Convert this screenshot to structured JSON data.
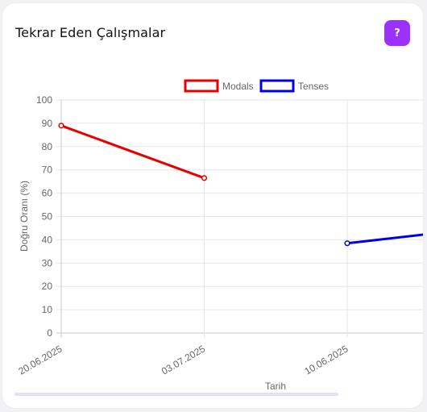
{
  "card": {
    "title": "Tekrar Eden Çalışmalar",
    "help_label": "?",
    "help_color": "#9b30ff"
  },
  "chart_data": {
    "type": "line",
    "categories": [
      "20.06.2025",
      "03.07.2025",
      "10.06.2025",
      ""
    ],
    "series": [
      {
        "name": "Modals",
        "color": "#e60000",
        "values": [
          89,
          66.5,
          null,
          null
        ]
      },
      {
        "name": "Tenses",
        "color": "#0000e6",
        "values": [
          null,
          null,
          38.5,
          45.5
        ]
      }
    ],
    "xlabel": "Tarih",
    "ylabel": "Doğru Oranı (%)",
    "ylim": [
      0,
      100
    ],
    "yticks": [
      0,
      10,
      20,
      30,
      40,
      50,
      60,
      70,
      80,
      90,
      100
    ],
    "grid": true,
    "legend_position": "top-center"
  }
}
